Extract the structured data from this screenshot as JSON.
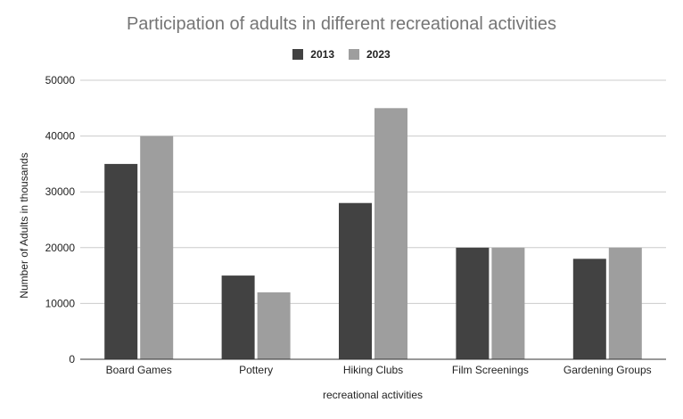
{
  "chart_data": {
    "type": "bar",
    "title": "Participation of adults in different recreational activities",
    "xlabel": "recreational activities",
    "ylabel": "Number of Adults in thousands",
    "categories": [
      "Board Games",
      "Pottery",
      "Hiking Clubs",
      "Film Screenings",
      "Gardening Groups"
    ],
    "series": [
      {
        "name": "2013",
        "values": [
          35000,
          15000,
          28000,
          20000,
          18000
        ],
        "color": "#424242"
      },
      {
        "name": "2023",
        "values": [
          40000,
          12000,
          45000,
          20000,
          20000
        ],
        "color": "#9e9e9e"
      }
    ],
    "ylim": [
      0,
      50000
    ],
    "yticks": [
      0,
      10000,
      20000,
      30000,
      40000,
      50000
    ],
    "grid": true,
    "legend": "top-center"
  }
}
